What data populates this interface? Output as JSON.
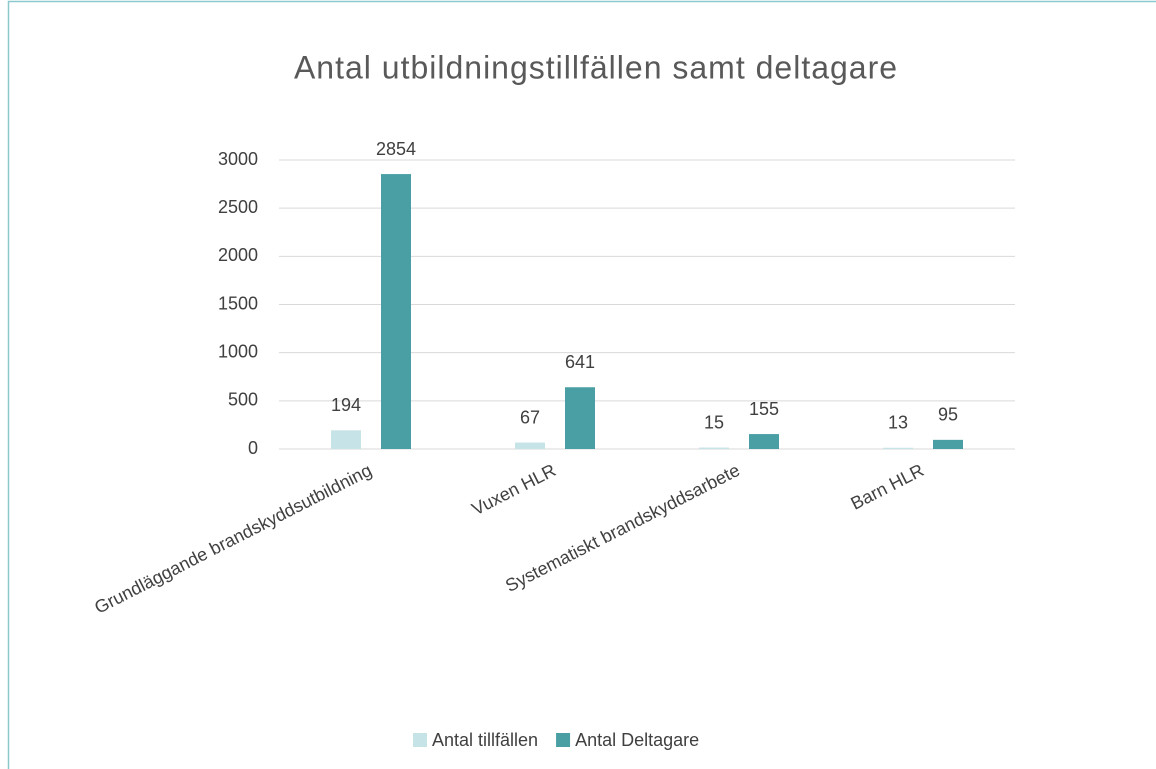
{
  "chart_data": {
    "type": "bar",
    "title": "Antal utbildningstillfällen samt deltagare",
    "categories": [
      "Grundläggande brandskyddsutbildning",
      "Vuxen HLR",
      "Systematiskt brandskyddsarbete",
      "Barn HLR"
    ],
    "series": [
      {
        "name": "Antal tillfällen",
        "color": "#c6e4e7",
        "values": [
          194,
          67,
          15,
          13
        ]
      },
      {
        "name": "Antal Deltagare",
        "color": "#4a9fa4",
        "values": [
          2854,
          641,
          155,
          95
        ]
      }
    ],
    "ylim": [
      0,
      3000
    ],
    "yticks": [
      0,
      500,
      1000,
      1500,
      2000,
      2500,
      3000
    ],
    "grid": true,
    "legend": "bottom"
  }
}
